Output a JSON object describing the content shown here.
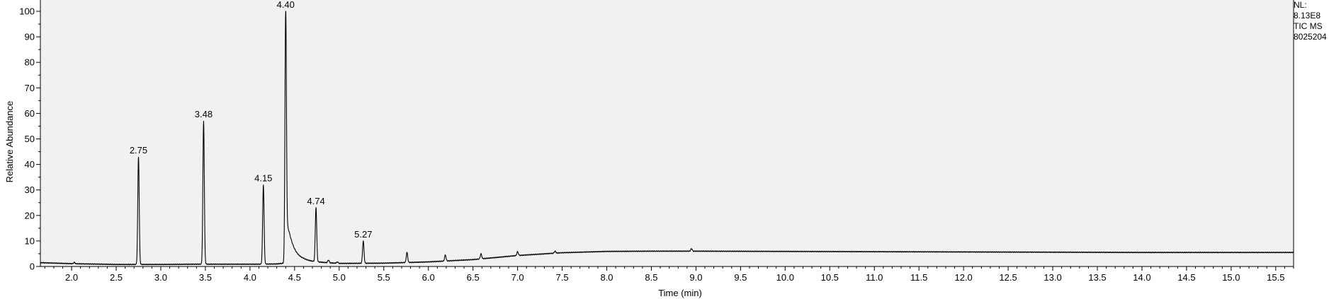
{
  "chart_data": {
    "type": "line",
    "title": "",
    "xlabel": "Time (min)",
    "ylabel": "Relative Abundance",
    "xlim": [
      1.65,
      15.7
    ],
    "ylim": [
      0,
      100
    ],
    "x_ticks": [
      "2.0",
      "2.5",
      "3.0",
      "3.5",
      "4.0",
      "4.5",
      "5.0",
      "5.5",
      "6.0",
      "6.5",
      "7.0",
      "7.5",
      "8.0",
      "8.5",
      "9.0",
      "9.5",
      "10.0",
      "10.5",
      "11.0",
      "11.5",
      "12.0",
      "12.5",
      "13.0",
      "13.5",
      "14.0",
      "14.5",
      "15.0",
      "15.5"
    ],
    "y_ticks": [
      "0",
      "10",
      "20",
      "30",
      "40",
      "50",
      "60",
      "70",
      "80",
      "90",
      "100"
    ],
    "grid": false,
    "peaks": [
      {
        "label": "2.75",
        "x": 2.75,
        "y": 43
      },
      {
        "label": "3.48",
        "x": 3.48,
        "y": 57
      },
      {
        "label": "4.15",
        "x": 4.15,
        "y": 32
      },
      {
        "label": "4.40",
        "x": 4.4,
        "y": 100
      },
      {
        "label": "4.74",
        "x": 4.74,
        "y": 23
      },
      {
        "label": "5.27",
        "x": 5.27,
        "y": 10
      }
    ],
    "minor_peaks": [
      {
        "x": 2.03,
        "y": 1.6
      },
      {
        "x": 4.88,
        "y": 2.5
      },
      {
        "x": 4.98,
        "y": 1.8
      },
      {
        "x": 5.76,
        "y": 5.5
      },
      {
        "x": 6.19,
        "y": 4.5
      },
      {
        "x": 6.59,
        "y": 5
      },
      {
        "x": 7.0,
        "y": 5.8
      },
      {
        "x": 7.42,
        "y": 6
      },
      {
        "x": 8.95,
        "y": 7
      }
    ],
    "baseline": [
      {
        "x": 1.65,
        "y": 1.5
      },
      {
        "x": 2.0,
        "y": 1.1
      },
      {
        "x": 2.5,
        "y": 0.8
      },
      {
        "x": 3.0,
        "y": 0.8
      },
      {
        "x": 3.4,
        "y": 0.9
      },
      {
        "x": 4.1,
        "y": 0.9
      },
      {
        "x": 4.3,
        "y": 1.0
      },
      {
        "x": 4.6,
        "y": 2.0
      },
      {
        "x": 5.0,
        "y": 1.2
      },
      {
        "x": 5.5,
        "y": 1.3
      },
      {
        "x": 6.0,
        "y": 1.8
      },
      {
        "x": 6.5,
        "y": 2.7
      },
      {
        "x": 7.0,
        "y": 4.3
      },
      {
        "x": 7.5,
        "y": 5.4
      },
      {
        "x": 8.0,
        "y": 5.9
      },
      {
        "x": 8.5,
        "y": 6.0
      },
      {
        "x": 9.0,
        "y": 6.0
      },
      {
        "x": 10.0,
        "y": 5.9
      },
      {
        "x": 11.0,
        "y": 5.8
      },
      {
        "x": 12.0,
        "y": 5.7
      },
      {
        "x": 13.0,
        "y": 5.6
      },
      {
        "x": 14.0,
        "y": 5.5
      },
      {
        "x": 15.0,
        "y": 5.5
      },
      {
        "x": 15.7,
        "y": 5.5
      }
    ],
    "side_info": [
      "NL:",
      "8.13E8",
      "TIC  MS",
      "8025204"
    ],
    "line_color": "#000000",
    "background_color": "#f1f1f1"
  }
}
